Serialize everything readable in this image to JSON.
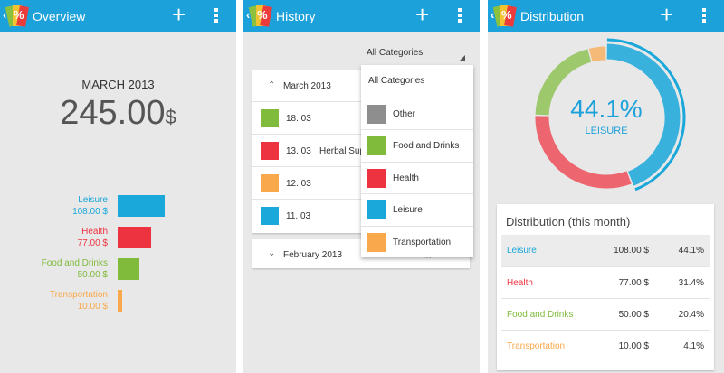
{
  "colors": {
    "accent": "#1da1da",
    "leisure": "#1aa7da",
    "health": "#ee3340",
    "food": "#80bb3c",
    "transportation": "#f9a84b",
    "other": "#8e8e8e"
  },
  "icons": {
    "back": "chevron-left-icon",
    "logo": "percent-logo-icon",
    "add": "plus-icon",
    "menu": "overflow-menu-icon"
  },
  "overview": {
    "app": {
      "back_glyph": "‹",
      "logo_glyph": "%",
      "title": "Overview",
      "add_glyph": "+"
    },
    "month": "MARCH 2013",
    "total": "245.00",
    "currency": "$",
    "categories": [
      {
        "name": "Leisure",
        "amount": "108.00 $",
        "share": 1.0
      },
      {
        "name": "Health",
        "amount": "77.00 $",
        "share": 0.713
      },
      {
        "name": "Food and Drinks",
        "amount": "50.00 $",
        "share": 0.463
      },
      {
        "name": "Transportation",
        "amount": "10.00 $",
        "share": 0.093
      }
    ]
  },
  "history": {
    "app": {
      "back_glyph": "‹",
      "logo_glyph": "%",
      "title": "History",
      "add_glyph": "+"
    },
    "filter_value": "All Categories",
    "months": [
      {
        "label": "March 2013",
        "expanded": true,
        "entries": [
          {
            "date": "18. 03",
            "desc": "",
            "category": "food"
          },
          {
            "date": "13. 03",
            "desc": "Herbal Sup",
            "category": "health"
          },
          {
            "date": "12. 03",
            "desc": "",
            "category": "transportation"
          },
          {
            "date": "11. 03",
            "desc": "",
            "category": "leisure"
          }
        ]
      },
      {
        "label": "February 2013",
        "expanded": false,
        "amount_partial": "…"
      }
    ],
    "dropdown": [
      {
        "label": "All Categories",
        "category": ""
      },
      {
        "label": "Other",
        "category": "other"
      },
      {
        "label": "Food and Drinks",
        "category": "food"
      },
      {
        "label": "Health",
        "category": "health"
      },
      {
        "label": "Leisure",
        "category": "leisure"
      },
      {
        "label": "Transportation",
        "category": "transportation"
      }
    ]
  },
  "distribution": {
    "app": {
      "back_glyph": "‹",
      "logo_glyph": "%",
      "title": "Distribution",
      "add_glyph": "+"
    },
    "selected_percent": "44.1%",
    "selected_label": "LEISURE",
    "table_title": "Distribution (this month)",
    "rows": [
      {
        "name": "Leisure",
        "amount": "108.00 $",
        "percent": "44.1%",
        "category": "leisure",
        "selected": true
      },
      {
        "name": "Health",
        "amount": "77.00 $",
        "percent": "31.4%",
        "category": "health",
        "selected": false
      },
      {
        "name": "Food and Drinks",
        "amount": "50.00 $",
        "percent": "20.4%",
        "category": "food",
        "selected": false
      },
      {
        "name": "Transportation",
        "amount": "10.00 $",
        "percent": "4.1%",
        "category": "transportation",
        "selected": false
      }
    ],
    "ring_shares": [
      {
        "category": "leisure",
        "value": 44.1
      },
      {
        "category": "health",
        "value": 31.4
      },
      {
        "category": "food",
        "value": 20.4
      },
      {
        "category": "transportation",
        "value": 4.1
      }
    ]
  }
}
